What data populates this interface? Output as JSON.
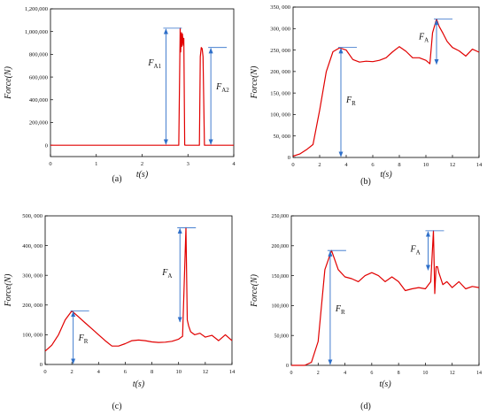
{
  "figure": {
    "colors": {
      "curve": "#e10000",
      "arrow": "#2e6fc9",
      "axis": "#000000"
    }
  },
  "chart_data": [
    {
      "id": "a",
      "type": "line",
      "panel_label": "(a)",
      "xlabel": "t(s)",
      "ylabel": "Force(N)",
      "xlim": [
        0,
        4
      ],
      "ylim": [
        -100000,
        1200000
      ],
      "x_ticks": [
        0,
        1,
        2,
        3,
        4
      ],
      "x_tick_labels": [
        "0",
        "1",
        "2",
        "3",
        "4"
      ],
      "y_ticks": [
        0,
        200000,
        400000,
        600000,
        800000,
        1000000,
        1200000
      ],
      "y_tick_labels": [
        "0",
        "200,000",
        "400,000",
        "600,000",
        "800,000",
        "1,000,000",
        "1,200,000"
      ],
      "grid": false,
      "series": [
        {
          "x": [
            0,
            2.8,
            2.83,
            2.84,
            2.86,
            2.87,
            2.88,
            2.9,
            2.91,
            2.93,
            2.96,
            3.25,
            3.27,
            3.29,
            3.31,
            3.33,
            3.36,
            4
          ],
          "values": [
            0,
            0,
            1030000,
            820000,
            990000,
            870000,
            980000,
            880000,
            940000,
            1000,
            0,
            0,
            780000,
            860000,
            850000,
            780000,
            0,
            0
          ]
        }
      ],
      "annotations": [
        {
          "text": "F",
          "sub": "A1",
          "x": 2.52,
          "y_top": 1030000,
          "y_bottom": 0,
          "label_y": 700000,
          "label_side": "left"
        },
        {
          "text": "F",
          "sub": "A2",
          "x": 3.5,
          "y_top": 860000,
          "y_bottom": 0,
          "label_y": 490000,
          "label_side": "right"
        }
      ]
    },
    {
      "id": "b",
      "type": "line",
      "panel_label": "(b)",
      "xlabel": "t(s)",
      "ylabel": "Force(N)",
      "xlim": [
        0,
        14
      ],
      "ylim": [
        0,
        350000
      ],
      "x_ticks": [
        0,
        2,
        4,
        6,
        8,
        10,
        12,
        14
      ],
      "x_tick_labels": [
        "0",
        "2",
        "4",
        "6",
        "8",
        "10",
        "12",
        "14"
      ],
      "y_ticks": [
        0,
        50000,
        100000,
        150000,
        200000,
        250000,
        300000,
        350000
      ],
      "y_tick_labels": [
        "0",
        "50, 000",
        "100, 000",
        "150, 000",
        "200, 000",
        "250, 000",
        "300, 000",
        "350, 000"
      ],
      "grid": false,
      "series": [
        {
          "x": [
            0,
            0.5,
            1,
            1.5,
            2,
            2.5,
            3,
            3.5,
            4,
            4.5,
            5,
            5.5,
            6,
            6.5,
            7,
            7.5,
            8,
            8.5,
            9,
            9.5,
            10,
            10.3,
            10.5,
            10.8,
            11,
            11.3,
            11.6,
            12,
            12.5,
            13,
            13.5,
            14
          ],
          "values": [
            3000,
            8000,
            18000,
            30000,
            110000,
            200000,
            246000,
            255000,
            250000,
            228000,
            222000,
            224000,
            223000,
            226000,
            232000,
            246000,
            258000,
            247000,
            232000,
            232000,
            226000,
            218000,
            290000,
            322000,
            305000,
            288000,
            270000,
            256000,
            248000,
            236000,
            252000,
            245000
          ]
        }
      ],
      "annotations": [
        {
          "text": "F",
          "sub": "R",
          "x": 3.6,
          "y_top": 256000,
          "y_bottom": 0,
          "label_y": 128000,
          "label_side": "right"
        },
        {
          "text": "F",
          "sub": "A",
          "x": 10.8,
          "y_top": 322000,
          "y_bottom": 215000,
          "label_y": 275000,
          "label_side": "left"
        }
      ]
    },
    {
      "id": "c",
      "type": "line",
      "panel_label": "(c)",
      "xlabel": "t(s)",
      "ylabel": "Force(N)",
      "xlim": [
        0,
        14
      ],
      "ylim": [
        0,
        500000
      ],
      "x_ticks": [
        0,
        2,
        4,
        6,
        8,
        10,
        12,
        14
      ],
      "x_tick_labels": [
        "0",
        "2",
        "4",
        "6",
        "8",
        "10",
        "12",
        "14"
      ],
      "y_ticks": [
        0,
        100000,
        200000,
        300000,
        400000,
        500000
      ],
      "y_tick_labels": [
        "0",
        "100, 000",
        "200, 000",
        "300, 000",
        "400, 000",
        "500, 000"
      ],
      "grid": false,
      "series": [
        {
          "x": [
            0,
            0.5,
            1,
            1.5,
            2,
            2.5,
            3,
            3.5,
            4,
            4.5,
            5,
            5.5,
            6,
            6.5,
            7,
            7.5,
            8,
            8.5,
            9,
            9.5,
            10,
            10.3,
            10.55,
            10.65,
            10.75,
            10.9,
            11.2,
            11.6,
            12,
            12.5,
            13,
            13.5,
            14
          ],
          "values": [
            45000,
            65000,
            100000,
            150000,
            180000,
            160000,
            140000,
            120000,
            100000,
            80000,
            62000,
            62000,
            70000,
            80000,
            82000,
            80000,
            76000,
            74000,
            75000,
            78000,
            85000,
            95000,
            460000,
            150000,
            130000,
            110000,
            100000,
            105000,
            92000,
            98000,
            80000,
            100000,
            80000
          ]
        }
      ],
      "annotations": [
        {
          "text": "F",
          "sub": "R",
          "x": 2.1,
          "y_top": 180000,
          "y_bottom": 0,
          "label_y": 80000,
          "label_side": "right"
        },
        {
          "text": "F",
          "sub": "A",
          "x": 10.1,
          "y_top": 460000,
          "y_bottom": 140000,
          "label_y": 300000,
          "label_side": "left"
        }
      ]
    },
    {
      "id": "d",
      "type": "line",
      "panel_label": "(d)",
      "xlabel": "t(s)",
      "ylabel": "Force(N)",
      "xlim": [
        0,
        14
      ],
      "ylim": [
        0,
        250000
      ],
      "x_ticks": [
        0,
        2,
        4,
        6,
        8,
        10,
        12,
        14
      ],
      "x_tick_labels": [
        "0",
        "2",
        "4",
        "6",
        "8",
        "10",
        "12",
        "14"
      ],
      "y_ticks": [
        0,
        50000,
        100000,
        150000,
        200000,
        250000
      ],
      "y_tick_labels": [
        "0",
        "50,000",
        "100,000",
        "150,000",
        "200,000",
        "250,000"
      ],
      "grid": false,
      "series": [
        {
          "x": [
            0,
            1,
            1.5,
            2,
            2.5,
            3,
            3.5,
            4,
            4.5,
            5,
            5.5,
            6,
            6.5,
            7,
            7.5,
            8,
            8.5,
            9,
            9.5,
            10,
            10.4,
            10.6,
            10.7,
            10.8,
            10.9,
            11,
            11.3,
            11.6,
            12,
            12.5,
            13,
            13.5,
            14
          ],
          "values": [
            0,
            0,
            5000,
            40000,
            160000,
            192000,
            160000,
            148000,
            145000,
            140000,
            150000,
            155000,
            150000,
            140000,
            148000,
            140000,
            125000,
            128000,
            130000,
            128000,
            140000,
            225000,
            120000,
            165000,
            165000,
            155000,
            135000,
            140000,
            130000,
            140000,
            128000,
            132000,
            130000
          ]
        }
      ],
      "annotations": [
        {
          "text": "F",
          "sub": "R",
          "x": 2.9,
          "y_top": 192000,
          "y_bottom": 0,
          "label_y": 90000,
          "label_side": "right"
        },
        {
          "text": "F",
          "sub": "A",
          "x": 10.2,
          "y_top": 225000,
          "y_bottom": 158000,
          "label_y": 190000,
          "label_side": "left"
        }
      ]
    }
  ]
}
